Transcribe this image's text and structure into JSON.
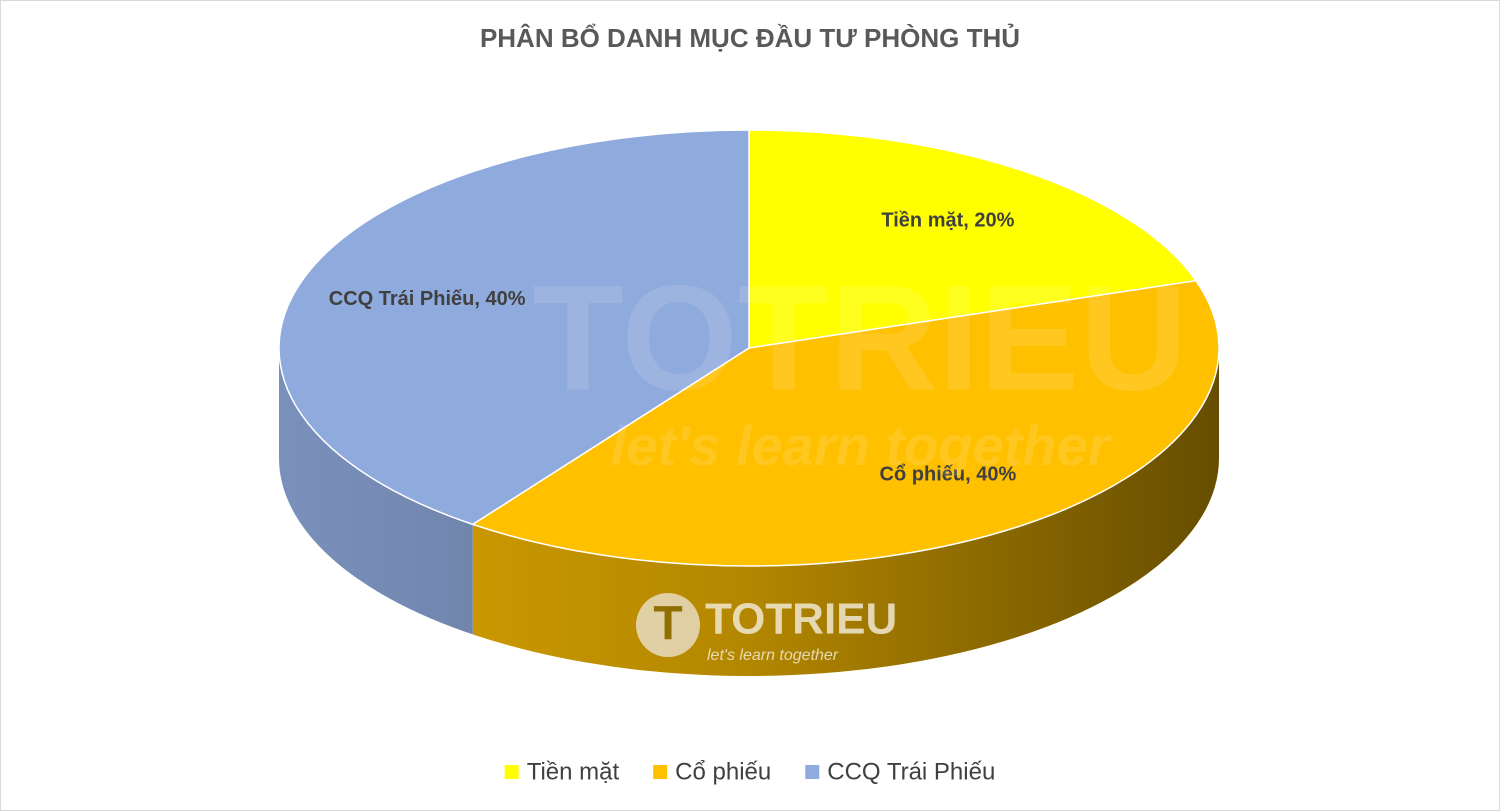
{
  "chart_data": {
    "type": "pie3d",
    "title": "PHÂN BỔ DANH MỤC ĐẦU TƯ PHÒNG THỦ",
    "categories": [
      "Tiền mặt",
      "Cổ phiếu",
      "CCQ Trái Phiếu"
    ],
    "values": [
      20,
      40,
      40
    ],
    "value_labels": [
      "Tiền mặt, 20%",
      "Cổ phiếu, 40%",
      "CCQ Trái Phiếu, 40%"
    ],
    "colors": [
      "#ffff00",
      "#ffc000",
      "#8faadc"
    ],
    "legend": "bottom"
  },
  "watermark": {
    "brand": "TOTRIEU",
    "tagline": "let's learn together"
  }
}
